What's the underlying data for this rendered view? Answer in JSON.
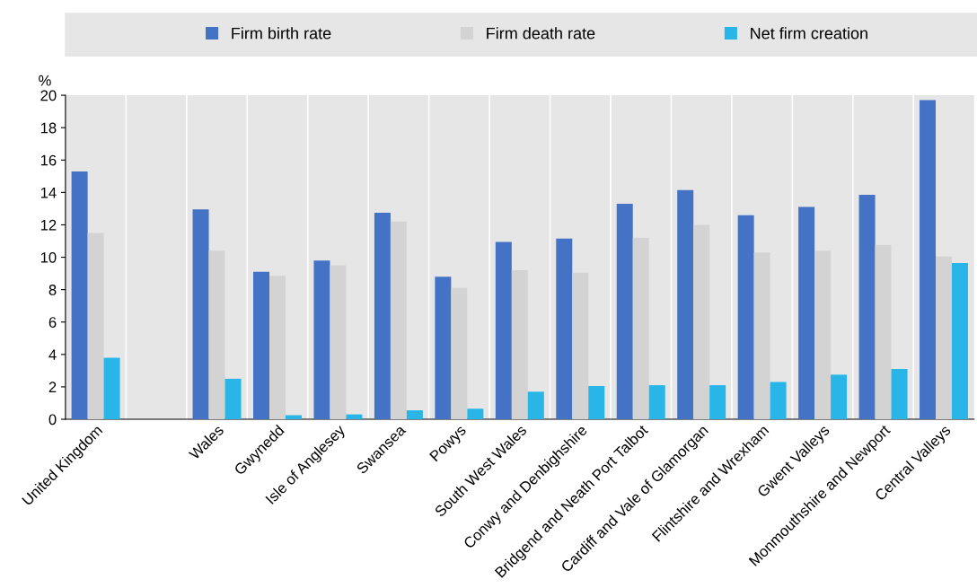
{
  "chart_data": {
    "type": "bar",
    "ylabel": "%",
    "categories": [
      "United Kingdom",
      null,
      "Wales",
      "Gwynedd",
      "Isle of Anglesey",
      "Swansea",
      "Powys",
      "South West Wales",
      "Conwy and Denbighshire",
      "Bridgend and Neath Port Talbot",
      "Cardiff and Vale of Glamorgan",
      "Flintshire and Wrexham",
      "Gwent Valleys",
      "Monmouthshire and Newport",
      "Central Valleys"
    ],
    "series": [
      {
        "name": "Firm birth rate",
        "color": "#4472c4",
        "values": [
          15.3,
          null,
          12.95,
          9.1,
          9.8,
          12.75,
          8.8,
          10.95,
          11.15,
          13.3,
          14.15,
          12.6,
          13.1,
          13.85,
          19.7
        ]
      },
      {
        "name": "Firm death rate",
        "color": "#d3d3d3",
        "values": [
          11.5,
          null,
          10.4,
          8.85,
          9.5,
          12.2,
          8.1,
          9.2,
          9.05,
          11.2,
          12.0,
          10.3,
          10.4,
          10.75,
          10.05
        ]
      },
      {
        "name": "Net firm creation",
        "color": "#29b5e8",
        "values": [
          3.8,
          null,
          2.5,
          0.25,
          0.3,
          0.55,
          0.65,
          1.7,
          2.05,
          2.1,
          2.1,
          2.3,
          2.75,
          3.1,
          9.65
        ]
      }
    ],
    "ylim": [
      0,
      20
    ],
    "yticks": [
      0,
      2,
      4,
      6,
      8,
      10,
      12,
      14,
      16,
      18,
      20
    ],
    "grid": "x",
    "legend": "top"
  }
}
